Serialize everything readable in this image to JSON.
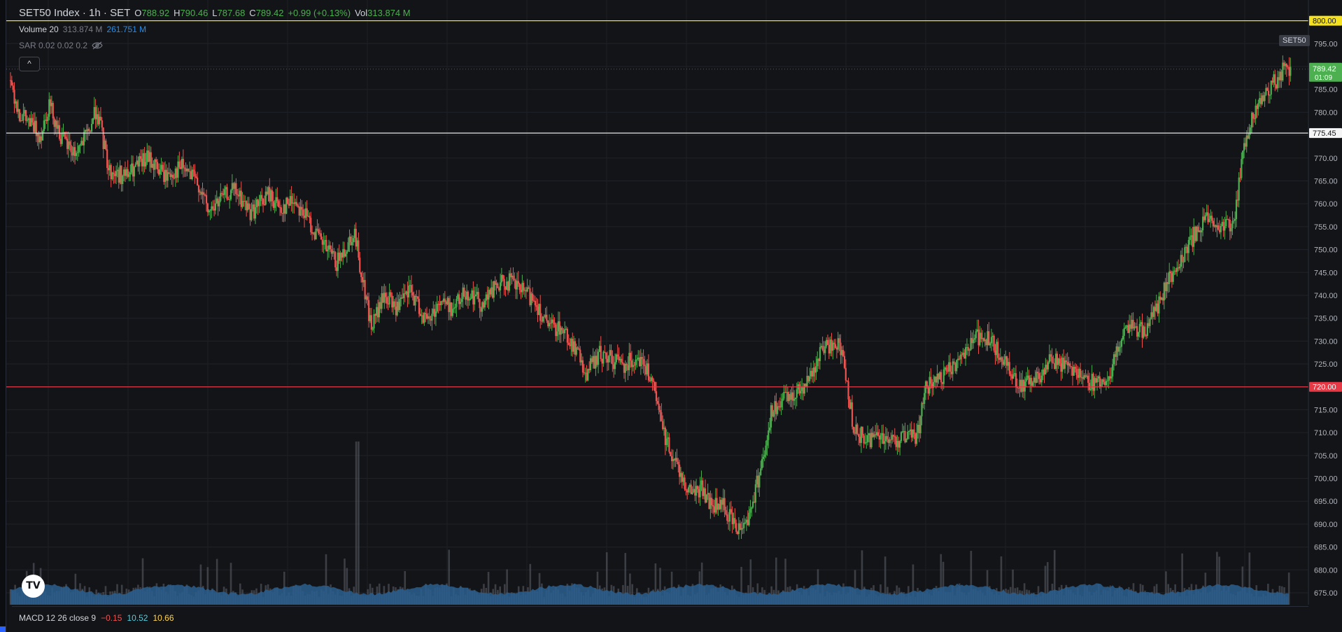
{
  "header": {
    "symbol": "SET50 Index · 1h · SET",
    "open_k": "O",
    "open_v": "788.92",
    "high_k": "H",
    "high_v": "790.46",
    "low_k": "L",
    "low_v": "787.68",
    "close_k": "C",
    "close_v": "789.42",
    "change": "+0.99 (+0.13%)",
    "vol_k": "Vol",
    "vol_v": "313.874 M"
  },
  "volume_indicator": {
    "label": "Volume 20",
    "value": "313.874 M",
    "ma": "261.751 M"
  },
  "sar_indicator": {
    "label": "SAR 0.02 0.02 0.2"
  },
  "collapse_label": "^",
  "symbol_badge": "SET50",
  "macd_indicator": {
    "label": "MACD 12 26 close 9",
    "hist": "−0.15",
    "macd": "10.52",
    "signal": "10.66"
  },
  "logo_text": "TV",
  "colors": {
    "background": "#131417",
    "up": "#26a69a",
    "up_candle": "#4caf50",
    "down": "#ef5350",
    "volume": "#2a5f8f",
    "yellow_line": "#f5e11d",
    "red_line": "#e53945",
    "white_line": "#e8e8e8"
  },
  "chart_data": {
    "type": "candlestick",
    "title": "SET50 Index · 1h · SET",
    "y_axis_ticks": [
      "795.00",
      "790.00",
      "785.00",
      "780.00",
      "775.00",
      "770.00",
      "765.00",
      "760.00",
      "755.00",
      "750.00",
      "745.00",
      "740.00",
      "735.00",
      "730.00",
      "725.00",
      "720.00",
      "715.00",
      "710.00",
      "705.00",
      "700.00",
      "695.00",
      "690.00",
      "685.00",
      "680.00",
      "675.00"
    ],
    "ylim": [
      672.4,
      800.4
    ],
    "horizontal_lines": [
      {
        "value": 800.0,
        "label": "800.00",
        "color": "#f5e11d"
      },
      {
        "value": 775.45,
        "label": "775.45",
        "color": "#e8e8e8"
      },
      {
        "value": 720.0,
        "label": "720.00",
        "color": "#e53945"
      }
    ],
    "last_price": {
      "value": 789.42,
      "label": "789.42",
      "countdown": "01:09"
    },
    "price_path": [
      [
        0,
        787
      ],
      [
        10,
        780
      ],
      [
        25,
        777
      ],
      [
        35,
        775
      ],
      [
        45,
        782
      ],
      [
        60,
        774
      ],
      [
        75,
        771
      ],
      [
        90,
        775
      ],
      [
        100,
        781
      ],
      [
        115,
        767
      ],
      [
        135,
        766
      ],
      [
        160,
        770
      ],
      [
        180,
        766
      ],
      [
        200,
        768
      ],
      [
        220,
        764
      ],
      [
        230,
        758
      ],
      [
        245,
        761
      ],
      [
        260,
        763
      ],
      [
        280,
        758
      ],
      [
        300,
        762
      ],
      [
        315,
        759
      ],
      [
        330,
        761
      ],
      [
        345,
        757
      ],
      [
        360,
        752
      ],
      [
        380,
        747
      ],
      [
        400,
        754
      ],
      [
        410,
        743
      ],
      [
        420,
        733
      ],
      [
        435,
        740
      ],
      [
        450,
        737
      ],
      [
        465,
        741
      ],
      [
        485,
        734
      ],
      [
        500,
        739
      ],
      [
        515,
        737
      ],
      [
        530,
        741
      ],
      [
        550,
        738
      ],
      [
        565,
        742
      ],
      [
        580,
        743
      ],
      [
        595,
        741
      ],
      [
        610,
        739
      ],
      [
        625,
        733
      ],
      [
        640,
        733
      ],
      [
        655,
        729
      ],
      [
        670,
        723
      ],
      [
        685,
        727
      ],
      [
        700,
        726
      ],
      [
        715,
        725
      ],
      [
        730,
        727
      ],
      [
        745,
        722
      ],
      [
        760,
        710
      ],
      [
        775,
        703
      ],
      [
        790,
        697
      ],
      [
        805,
        698
      ],
      [
        815,
        694
      ],
      [
        830,
        694
      ],
      [
        845,
        689
      ],
      [
        860,
        692
      ],
      [
        875,
        704
      ],
      [
        885,
        714
      ],
      [
        900,
        717
      ],
      [
        915,
        719
      ],
      [
        930,
        722
      ],
      [
        945,
        728
      ],
      [
        960,
        730
      ],
      [
        970,
        726
      ],
      [
        980,
        712
      ],
      [
        995,
        708
      ],
      [
        1010,
        710
      ],
      [
        1025,
        708
      ],
      [
        1040,
        709
      ],
      [
        1055,
        709
      ],
      [
        1065,
        720
      ],
      [
        1080,
        721
      ],
      [
        1095,
        724
      ],
      [
        1110,
        728
      ],
      [
        1125,
        731
      ],
      [
        1140,
        730
      ],
      [
        1155,
        726
      ],
      [
        1170,
        722
      ],
      [
        1180,
        720
      ],
      [
        1195,
        722
      ],
      [
        1210,
        726
      ],
      [
        1225,
        725
      ],
      [
        1240,
        724
      ],
      [
        1255,
        721
      ],
      [
        1270,
        721
      ],
      [
        1280,
        722
      ],
      [
        1290,
        730
      ],
      [
        1305,
        733
      ],
      [
        1320,
        732
      ],
      [
        1335,
        738
      ],
      [
        1350,
        744
      ],
      [
        1365,
        749
      ],
      [
        1380,
        754
      ],
      [
        1395,
        757
      ],
      [
        1405,
        755
      ],
      [
        1415,
        755
      ],
      [
        1425,
        757
      ],
      [
        1432,
        768
      ],
      [
        1440,
        776
      ],
      [
        1450,
        781
      ],
      [
        1465,
        785
      ],
      [
        1480,
        789
      ],
      [
        1490,
        790
      ]
    ],
    "volume_ylim": [
      0,
      120
    ]
  }
}
